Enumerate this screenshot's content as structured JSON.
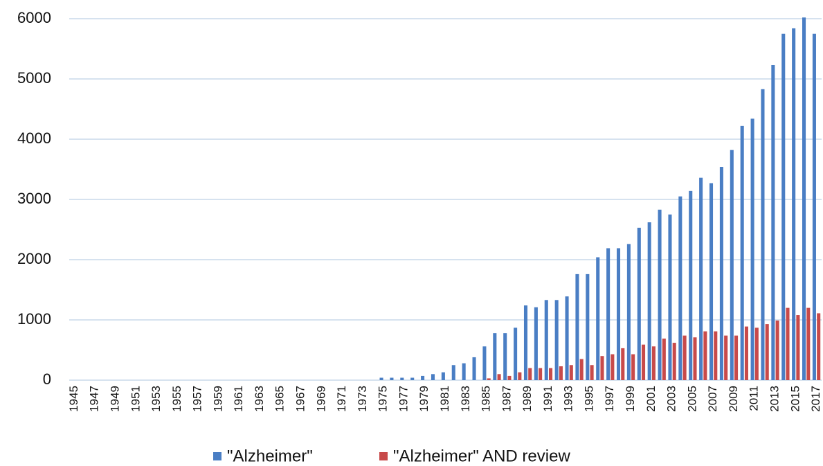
{
  "chart_data": {
    "type": "bar",
    "categories": [
      "1945",
      null,
      "1947",
      null,
      "1949",
      null,
      "1951",
      null,
      "1953",
      null,
      "1955",
      null,
      "1957",
      null,
      "1959",
      null,
      "1961",
      null,
      "1963",
      null,
      "1965",
      null,
      "1967",
      null,
      "1969",
      null,
      "1971",
      null,
      "1973",
      null,
      "1975",
      null,
      "1977",
      null,
      "1979",
      null,
      "1981",
      null,
      "1983",
      null,
      "1985",
      null,
      "1987",
      null,
      "1989",
      null,
      "1991",
      null,
      "1993",
      null,
      "1995",
      null,
      "1997",
      null,
      "1999",
      null,
      "2001",
      null,
      "2003",
      null,
      "2005",
      null,
      "2007",
      null,
      "2009",
      null,
      "2011",
      null,
      "2013",
      null,
      "2015",
      null,
      "2017"
    ],
    "series": [
      {
        "name": "\"Alzheimer\"",
        "color": "#4a7ec4",
        "values": [
          0,
          0,
          0,
          0,
          0,
          0,
          0,
          0,
          0,
          0,
          0,
          0,
          0,
          0,
          0,
          0,
          0,
          0,
          0,
          0,
          0,
          0,
          0,
          0,
          0,
          0,
          0,
          0,
          0,
          0,
          40,
          40,
          40,
          40,
          70,
          100,
          130,
          250,
          280,
          380,
          560,
          780,
          780,
          870,
          1240,
          1210,
          1330,
          1330,
          1390,
          1760,
          1760,
          2040,
          2190,
          2190,
          2260,
          2530,
          2620,
          2830,
          2750,
          3050,
          3140,
          3360,
          3270,
          3540,
          3820,
          4220,
          4340,
          4830,
          5230,
          5750,
          5840,
          6020,
          5750
        ]
      },
      {
        "name": "\"Alzheimer\" AND review",
        "color": "#c84a4a",
        "values": [
          0,
          0,
          0,
          0,
          0,
          0,
          0,
          0,
          0,
          0,
          0,
          0,
          0,
          0,
          0,
          0,
          0,
          0,
          0,
          0,
          0,
          0,
          0,
          0,
          0,
          0,
          0,
          0,
          0,
          0,
          0,
          0,
          0,
          0,
          0,
          0,
          0,
          0,
          0,
          0,
          30,
          100,
          70,
          130,
          200,
          200,
          200,
          230,
          250,
          350,
          250,
          400,
          430,
          530,
          430,
          590,
          560,
          690,
          620,
          740,
          710,
          810,
          810,
          740,
          740,
          890,
          870,
          930,
          990,
          1200,
          1080,
          1200,
          1110
        ]
      }
    ],
    "ylim": [
      0,
      6000
    ],
    "yticks": [
      0,
      1000,
      2000,
      3000,
      4000,
      5000,
      6000
    ],
    "grid": true,
    "legend": "bottom"
  }
}
